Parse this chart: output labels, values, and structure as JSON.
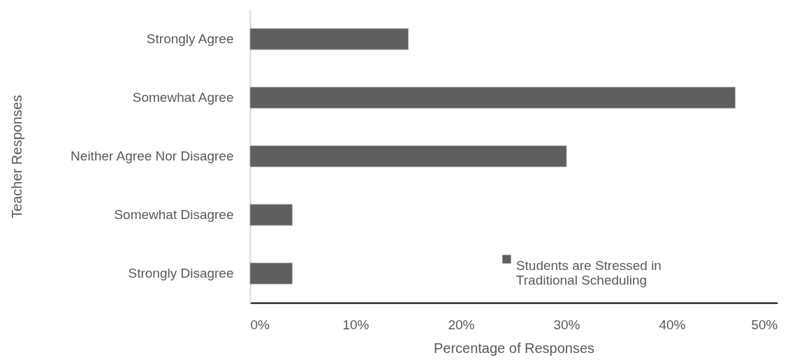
{
  "chart_data": {
    "type": "bar",
    "orientation": "horizontal",
    "xlabel": "Percentage of Responses",
    "ylabel": "Teacher Responses",
    "categories": [
      "Strongly Agree",
      "Somewhat Agree",
      "Neither Agree Nor Disagree",
      "Somewhat Disagree",
      "Strongly Disagree"
    ],
    "series": [
      {
        "name": "Students are Stressed in Traditional Scheduling",
        "color": "#5f5f5f",
        "values": [
          15,
          46,
          30,
          4,
          4
        ]
      }
    ],
    "xlim": [
      0,
      50
    ],
    "xticks": [
      {
        "value": 0,
        "label": "0%"
      },
      {
        "value": 10,
        "label": "10%"
      },
      {
        "value": 20,
        "label": "20%"
      },
      {
        "value": 30,
        "label": "30%"
      },
      {
        "value": 40,
        "label": "40%"
      },
      {
        "value": 50,
        "label": "50%"
      }
    ],
    "legend": "bottom right"
  }
}
